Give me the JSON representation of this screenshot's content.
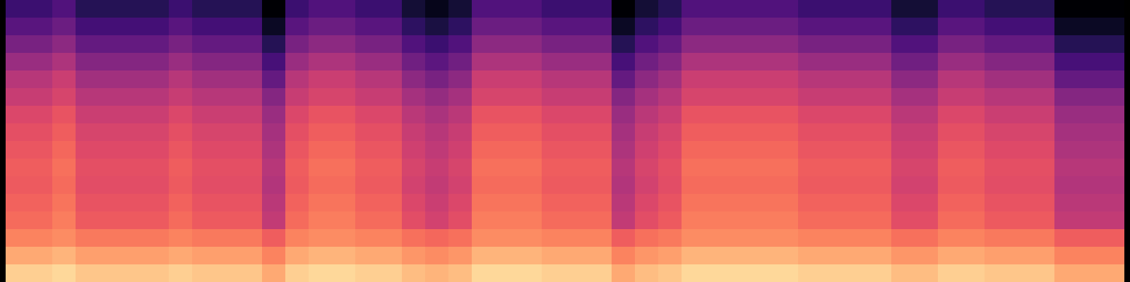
{
  "chart_data": {
    "type": "heatmap",
    "color": "magma",
    "tick_labels": false,
    "clim": [
      0,
      100
    ],
    "cells": [
      [
        20,
        20,
        25,
        15,
        15,
        15,
        15,
        20,
        15,
        15,
        15,
        0,
        20,
        25,
        25,
        20,
        20,
        10,
        5,
        10,
        25,
        25,
        25,
        20,
        20,
        20,
        0,
        10,
        15,
        25,
        25,
        25,
        25,
        25,
        20,
        20,
        20,
        20,
        10,
        10,
        20,
        20,
        15,
        15,
        15,
        0,
        0,
        0
      ],
      [
        27,
        27,
        32,
        22,
        22,
        22,
        22,
        27,
        22,
        22,
        22,
        7,
        27,
        32,
        32,
        27,
        27,
        17,
        12,
        17,
        32,
        32,
        32,
        27,
        27,
        27,
        7,
        17,
        22,
        32,
        32,
        32,
        32,
        32,
        27,
        27,
        27,
        27,
        17,
        17,
        27,
        27,
        22,
        22,
        22,
        7,
        7,
        7
      ],
      [
        35,
        35,
        40,
        30,
        30,
        30,
        30,
        35,
        30,
        30,
        30,
        15,
        35,
        40,
        40,
        35,
        35,
        25,
        20,
        25,
        40,
        40,
        40,
        35,
        35,
        35,
        15,
        25,
        30,
        40,
        40,
        40,
        40,
        40,
        35,
        35,
        35,
        35,
        25,
        25,
        35,
        35,
        30,
        30,
        30,
        15,
        15,
        15
      ],
      [
        43,
        43,
        48,
        38,
        38,
        38,
        38,
        43,
        38,
        38,
        38,
        23,
        43,
        48,
        48,
        43,
        43,
        33,
        28,
        33,
        48,
        48,
        48,
        43,
        43,
        43,
        23,
        33,
        38,
        48,
        48,
        48,
        48,
        48,
        43,
        43,
        43,
        43,
        33,
        33,
        43,
        43,
        38,
        38,
        38,
        23,
        23,
        23
      ],
      [
        50,
        50,
        55,
        45,
        45,
        45,
        45,
        50,
        45,
        45,
        45,
        30,
        50,
        55,
        55,
        50,
        50,
        40,
        35,
        40,
        55,
        55,
        55,
        50,
        50,
        50,
        30,
        40,
        45,
        55,
        55,
        55,
        55,
        55,
        50,
        50,
        50,
        50,
        40,
        40,
        50,
        50,
        45,
        45,
        45,
        30,
        30,
        30
      ],
      [
        54,
        54,
        58,
        50,
        50,
        50,
        50,
        54,
        50,
        50,
        50,
        38,
        54,
        58,
        58,
        54,
        54,
        46,
        42,
        46,
        58,
        58,
        58,
        54,
        54,
        54,
        38,
        46,
        50,
        58,
        58,
        58,
        58,
        58,
        54,
        54,
        54,
        54,
        46,
        46,
        54,
        54,
        50,
        50,
        50,
        38,
        38,
        38
      ],
      [
        59,
        59,
        63,
        55,
        55,
        55,
        55,
        59,
        55,
        55,
        55,
        43,
        59,
        63,
        63,
        59,
        59,
        51,
        47,
        51,
        63,
        63,
        63,
        59,
        59,
        59,
        43,
        51,
        55,
        63,
        63,
        63,
        63,
        63,
        59,
        59,
        59,
        59,
        51,
        51,
        59,
        59,
        55,
        55,
        55,
        43,
        43,
        43
      ],
      [
        62,
        62,
        66,
        58,
        58,
        58,
        58,
        62,
        58,
        58,
        58,
        46,
        62,
        66,
        66,
        62,
        62,
        54,
        50,
        54,
        66,
        66,
        66,
        62,
        62,
        62,
        46,
        54,
        58,
        66,
        66,
        66,
        66,
        66,
        62,
        62,
        62,
        62,
        54,
        54,
        62,
        62,
        58,
        58,
        58,
        46,
        46,
        46
      ],
      [
        64,
        64,
        68,
        60,
        60,
        60,
        60,
        64,
        60,
        60,
        60,
        48,
        64,
        68,
        68,
        64,
        64,
        56,
        52,
        56,
        68,
        68,
        68,
        64,
        64,
        64,
        48,
        56,
        60,
        68,
        68,
        68,
        68,
        68,
        64,
        64,
        64,
        64,
        56,
        56,
        64,
        64,
        60,
        60,
        60,
        48,
        48,
        48
      ],
      [
        66,
        66,
        70,
        62,
        62,
        62,
        62,
        66,
        62,
        62,
        62,
        50,
        66,
        70,
        70,
        66,
        66,
        58,
        54,
        58,
        70,
        70,
        70,
        66,
        66,
        66,
        50,
        58,
        62,
        70,
        70,
        70,
        70,
        70,
        66,
        66,
        66,
        66,
        58,
        58,
        66,
        66,
        62,
        62,
        62,
        50,
        50,
        50
      ],
      [
        65,
        65,
        69,
        61,
        61,
        61,
        61,
        65,
        61,
        61,
        61,
        49,
        65,
        69,
        69,
        65,
        65,
        57,
        53,
        57,
        69,
        69,
        69,
        65,
        65,
        65,
        49,
        57,
        61,
        69,
        69,
        69,
        69,
        69,
        65,
        65,
        65,
        65,
        57,
        57,
        65,
        65,
        61,
        61,
        61,
        49,
        49,
        49
      ],
      [
        67,
        67,
        71,
        63,
        63,
        63,
        63,
        67,
        63,
        63,
        63,
        51,
        67,
        71,
        71,
        67,
        67,
        59,
        55,
        59,
        71,
        71,
        71,
        67,
        67,
        67,
        51,
        59,
        63,
        71,
        71,
        71,
        71,
        71,
        67,
        67,
        67,
        67,
        59,
        59,
        67,
        67,
        63,
        63,
        63,
        51,
        51,
        51
      ],
      [
        69,
        69,
        73,
        65,
        65,
        65,
        65,
        69,
        65,
        65,
        65,
        53,
        69,
        73,
        73,
        69,
        69,
        61,
        57,
        61,
        73,
        73,
        73,
        69,
        69,
        69,
        53,
        61,
        65,
        73,
        73,
        73,
        73,
        73,
        69,
        69,
        69,
        69,
        61,
        61,
        69,
        69,
        65,
        65,
        65,
        53,
        53,
        53
      ],
      [
        74,
        74,
        76,
        72,
        72,
        72,
        72,
        74,
        72,
        72,
        72,
        66,
        74,
        76,
        76,
        74,
        74,
        70,
        68,
        70,
        76,
        76,
        76,
        74,
        74,
        74,
        66,
        70,
        72,
        76,
        76,
        76,
        76,
        76,
        74,
        74,
        74,
        74,
        70,
        70,
        74,
        74,
        72,
        72,
        72,
        66,
        66,
        66
      ],
      [
        82,
        82,
        84,
        80,
        80,
        80,
        80,
        82,
        80,
        80,
        80,
        74,
        82,
        84,
        84,
        82,
        82,
        78,
        76,
        78,
        84,
        84,
        84,
        82,
        82,
        82,
        74,
        78,
        80,
        84,
        84,
        84,
        84,
        84,
        82,
        82,
        82,
        82,
        78,
        78,
        82,
        82,
        80,
        80,
        80,
        74,
        74,
        74
      ],
      [
        90,
        90,
        92,
        88,
        88,
        88,
        88,
        90,
        88,
        88,
        88,
        82,
        90,
        92,
        92,
        90,
        90,
        86,
        84,
        86,
        92,
        92,
        92,
        90,
        90,
        90,
        82,
        86,
        88,
        92,
        92,
        92,
        92,
        92,
        90,
        90,
        90,
        90,
        86,
        86,
        90,
        90,
        88,
        88,
        88,
        82,
        82,
        82
      ]
    ]
  }
}
